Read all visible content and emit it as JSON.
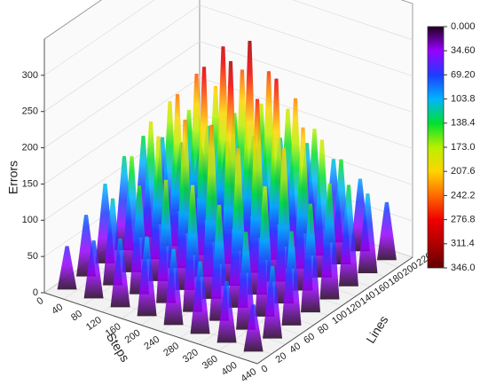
{
  "chart_data": {
    "type": "surface3d",
    "xlabel": "Steps",
    "ylabel": "Lines",
    "zlabel": "Errors",
    "xlim": [
      0,
      440
    ],
    "xticks": [
      0,
      40,
      80,
      120,
      160,
      200,
      240,
      280,
      320,
      360,
      400,
      440
    ],
    "ylim": [
      0,
      220
    ],
    "yticks": [
      0,
      20,
      40,
      60,
      80,
      100,
      120,
      140,
      160,
      180,
      200,
      220
    ],
    "zlim": [
      0,
      350
    ],
    "zticks": [
      0,
      50,
      100,
      150,
      200,
      250,
      300
    ],
    "x": [
      25,
      80,
      135,
      190,
      245,
      300,
      355,
      410
    ],
    "y": [
      15,
      42,
      69,
      96,
      123,
      150,
      177,
      204
    ],
    "z": [
      [
        60,
        85,
        110,
        130,
        140,
        120,
        95,
        70
      ],
      [
        80,
        120,
        160,
        190,
        200,
        170,
        130,
        90
      ],
      [
        95,
        150,
        200,
        240,
        250,
        215,
        160,
        110
      ],
      [
        110,
        170,
        235,
        290,
        300,
        250,
        185,
        120
      ],
      [
        105,
        175,
        240,
        310,
        320,
        260,
        190,
        125
      ],
      [
        100,
        160,
        220,
        270,
        280,
        235,
        175,
        115
      ],
      [
        85,
        135,
        180,
        215,
        225,
        190,
        145,
        100
      ],
      [
        65,
        100,
        130,
        150,
        160,
        140,
        110,
        80
      ]
    ],
    "colorbar_ticks": [
      {
        "value": 0,
        "label": "0.000"
      },
      {
        "value": 34.6,
        "label": "34.60"
      },
      {
        "value": 69.2,
        "label": "69.20"
      },
      103.8,
      138.4,
      {
        "value": 173,
        "label": "173.0"
      },
      207.6,
      242.2,
      276.8,
      311.4,
      {
        "value": 346,
        "label": "346.0"
      }
    ],
    "colormap": [
      "#200020",
      "#9a00ff",
      "#1e3cff",
      "#00b4ff",
      "#00e030",
      "#b8f000",
      "#ffd400",
      "#ff6a00",
      "#f00000",
      "#b00000",
      "#600000"
    ],
    "grid": true
  }
}
